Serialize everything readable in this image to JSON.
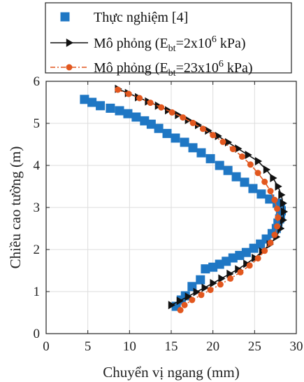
{
  "chart_data": {
    "type": "scatter",
    "xlabel": "Chuyển vị ngang (mm)",
    "ylabel": "Chiều cao tường (m)",
    "xlim": [
      0,
      30
    ],
    "ylim": [
      0,
      6
    ],
    "xticks": [
      "0",
      "5",
      "10",
      "15",
      "20",
      "25",
      "30"
    ],
    "yticks": [
      "0",
      "1",
      "2",
      "3",
      "4",
      "5",
      "6"
    ],
    "grid": true,
    "legend_position": "top",
    "legend": [
      {
        "pre": "Thực nghiệm [4]",
        "sub": "",
        "mid": "",
        "sup": "",
        "post": ""
      },
      {
        "pre": "Mô phỏng (E",
        "sub": "bt",
        "mid": "=2x10",
        "sup": "6",
        "post": " kPa)"
      },
      {
        "pre": "Mô phỏng (E",
        "sub": "bt",
        "mid": "=23x10",
        "sup": "6",
        "post": " kPa)"
      }
    ],
    "series": [
      {
        "style": "square-markers",
        "color": "#1f77c4",
        "points": [
          [
            4.6,
            5.57
          ],
          [
            5.5,
            5.5
          ],
          [
            6.5,
            5.42
          ],
          [
            7.7,
            5.36
          ],
          [
            8.8,
            5.3
          ],
          [
            9.8,
            5.23
          ],
          [
            10.8,
            5.15
          ],
          [
            11.8,
            5.06
          ],
          [
            12.6,
            4.98
          ],
          [
            13.5,
            4.88
          ],
          [
            14.5,
            4.76
          ],
          [
            15.5,
            4.65
          ],
          [
            16.6,
            4.55
          ],
          [
            17.6,
            4.42
          ],
          [
            18.6,
            4.3
          ],
          [
            19.7,
            4.16
          ],
          [
            20.8,
            4.0
          ],
          [
            21.8,
            3.88
          ],
          [
            22.8,
            3.73
          ],
          [
            23.8,
            3.6
          ],
          [
            24.8,
            3.45
          ],
          [
            25.8,
            3.32
          ],
          [
            26.8,
            3.2
          ],
          [
            27.7,
            3.1
          ],
          [
            28.1,
            3.03
          ],
          [
            28.2,
            2.92
          ],
          [
            28.1,
            2.82
          ],
          [
            28.0,
            2.73
          ],
          [
            27.8,
            2.63
          ],
          [
            27.6,
            2.5
          ],
          [
            27.1,
            2.38
          ],
          [
            26.4,
            2.25
          ],
          [
            25.7,
            2.13
          ],
          [
            24.9,
            2.03
          ],
          [
            24.0,
            1.93
          ],
          [
            23.2,
            1.86
          ],
          [
            22.4,
            1.8
          ],
          [
            21.6,
            1.72
          ],
          [
            20.8,
            1.65
          ],
          [
            20.0,
            1.58
          ],
          [
            19.1,
            1.54
          ],
          [
            18.5,
            1.28
          ],
          [
            17.5,
            1.12
          ],
          [
            16.7,
            0.9
          ],
          [
            16.2,
            0.8
          ],
          [
            15.6,
            0.65
          ]
        ]
      },
      {
        "style": "line-triangle",
        "color": "#111111",
        "points": [
          [
            8.6,
            5.82
          ],
          [
            9.8,
            5.72
          ],
          [
            11.0,
            5.62
          ],
          [
            12.2,
            5.52
          ],
          [
            13.4,
            5.42
          ],
          [
            14.6,
            5.31
          ],
          [
            15.8,
            5.2
          ],
          [
            17.0,
            5.08
          ],
          [
            18.2,
            4.96
          ],
          [
            19.4,
            4.83
          ],
          [
            20.6,
            4.7
          ],
          [
            21.8,
            4.55
          ],
          [
            23.0,
            4.4
          ],
          [
            24.2,
            4.25
          ],
          [
            25.4,
            4.1
          ],
          [
            26.4,
            3.9
          ],
          [
            27.2,
            3.7
          ],
          [
            27.8,
            3.5
          ],
          [
            28.2,
            3.3
          ],
          [
            28.4,
            3.1
          ],
          [
            28.5,
            2.9
          ],
          [
            28.4,
            2.7
          ],
          [
            28.1,
            2.5
          ],
          [
            27.6,
            2.3
          ],
          [
            26.8,
            2.12
          ],
          [
            25.9,
            1.95
          ],
          [
            25.0,
            1.8
          ],
          [
            24.0,
            1.66
          ],
          [
            23.0,
            1.53
          ],
          [
            22.0,
            1.42
          ],
          [
            21.0,
            1.31
          ],
          [
            20.0,
            1.2
          ],
          [
            19.0,
            1.09
          ],
          [
            18.0,
            0.99
          ],
          [
            17.0,
            0.88
          ],
          [
            16.0,
            0.78
          ],
          [
            15.0,
            0.68
          ]
        ]
      },
      {
        "style": "dashdot-circle",
        "color": "#e2571e",
        "points": [
          [
            8.6,
            5.8
          ],
          [
            9.9,
            5.7
          ],
          [
            11.2,
            5.6
          ],
          [
            12.5,
            5.49
          ],
          [
            13.8,
            5.38
          ],
          [
            15.1,
            5.26
          ],
          [
            16.4,
            5.14
          ],
          [
            17.6,
            5.01
          ],
          [
            18.8,
            4.87
          ],
          [
            20.0,
            4.72
          ],
          [
            21.2,
            4.56
          ],
          [
            22.4,
            4.39
          ],
          [
            23.5,
            4.21
          ],
          [
            24.5,
            4.02
          ],
          [
            25.4,
            3.82
          ],
          [
            26.2,
            3.61
          ],
          [
            26.9,
            3.39
          ],
          [
            27.4,
            3.18
          ],
          [
            27.7,
            2.97
          ],
          [
            27.8,
            2.76
          ],
          [
            27.7,
            2.55
          ],
          [
            27.4,
            2.35
          ],
          [
            26.9,
            2.16
          ],
          [
            26.2,
            1.97
          ],
          [
            25.4,
            1.79
          ],
          [
            24.4,
            1.62
          ],
          [
            23.3,
            1.46
          ],
          [
            22.1,
            1.31
          ],
          [
            20.9,
            1.17
          ],
          [
            19.7,
            1.04
          ],
          [
            18.6,
            0.92
          ],
          [
            17.5,
            0.8
          ],
          [
            16.6,
            0.68
          ],
          [
            16.1,
            0.56
          ]
        ]
      }
    ]
  }
}
